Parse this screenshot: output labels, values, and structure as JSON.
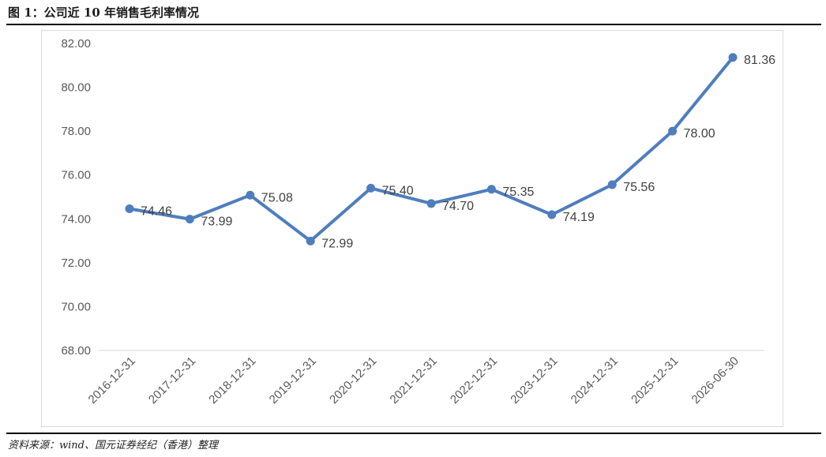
{
  "figure": {
    "title": "图 1：公司近 10 年销售毛利率情况",
    "source": "资料来源：wind、国元证券经纪（香港）整理"
  },
  "colors": {
    "line": "#4F7DBD",
    "axis_text": "#595959",
    "data_label": "#404040",
    "axis_line": "#d9d9d9"
  },
  "chart_data": {
    "type": "line",
    "title": "",
    "xlabel": "",
    "ylabel": "",
    "ylim": [
      68,
      82
    ],
    "yticks": [
      "68.00",
      "70.00",
      "72.00",
      "74.00",
      "76.00",
      "78.00",
      "80.00",
      "82.00"
    ],
    "grid": false,
    "legend": "none",
    "categories": [
      "2016-12-31",
      "2017-12-31",
      "2018-12-31",
      "2019-12-31",
      "2020-12-31",
      "2021-12-31",
      "2022-12-31",
      "2023-12-31",
      "2024-12-31",
      "2025-12-31",
      "2026-06-30"
    ],
    "series": [
      {
        "values": [
          74.46,
          73.99,
          75.08,
          72.99,
          75.4,
          74.7,
          75.35,
          74.19,
          75.56,
          78.0,
          81.36
        ],
        "labels": [
          "74.46",
          "73.99",
          "75.08",
          "72.99",
          "75.40",
          "74.70",
          "75.35",
          "74.19",
          "75.56",
          "78.00",
          "81.36"
        ]
      }
    ]
  }
}
